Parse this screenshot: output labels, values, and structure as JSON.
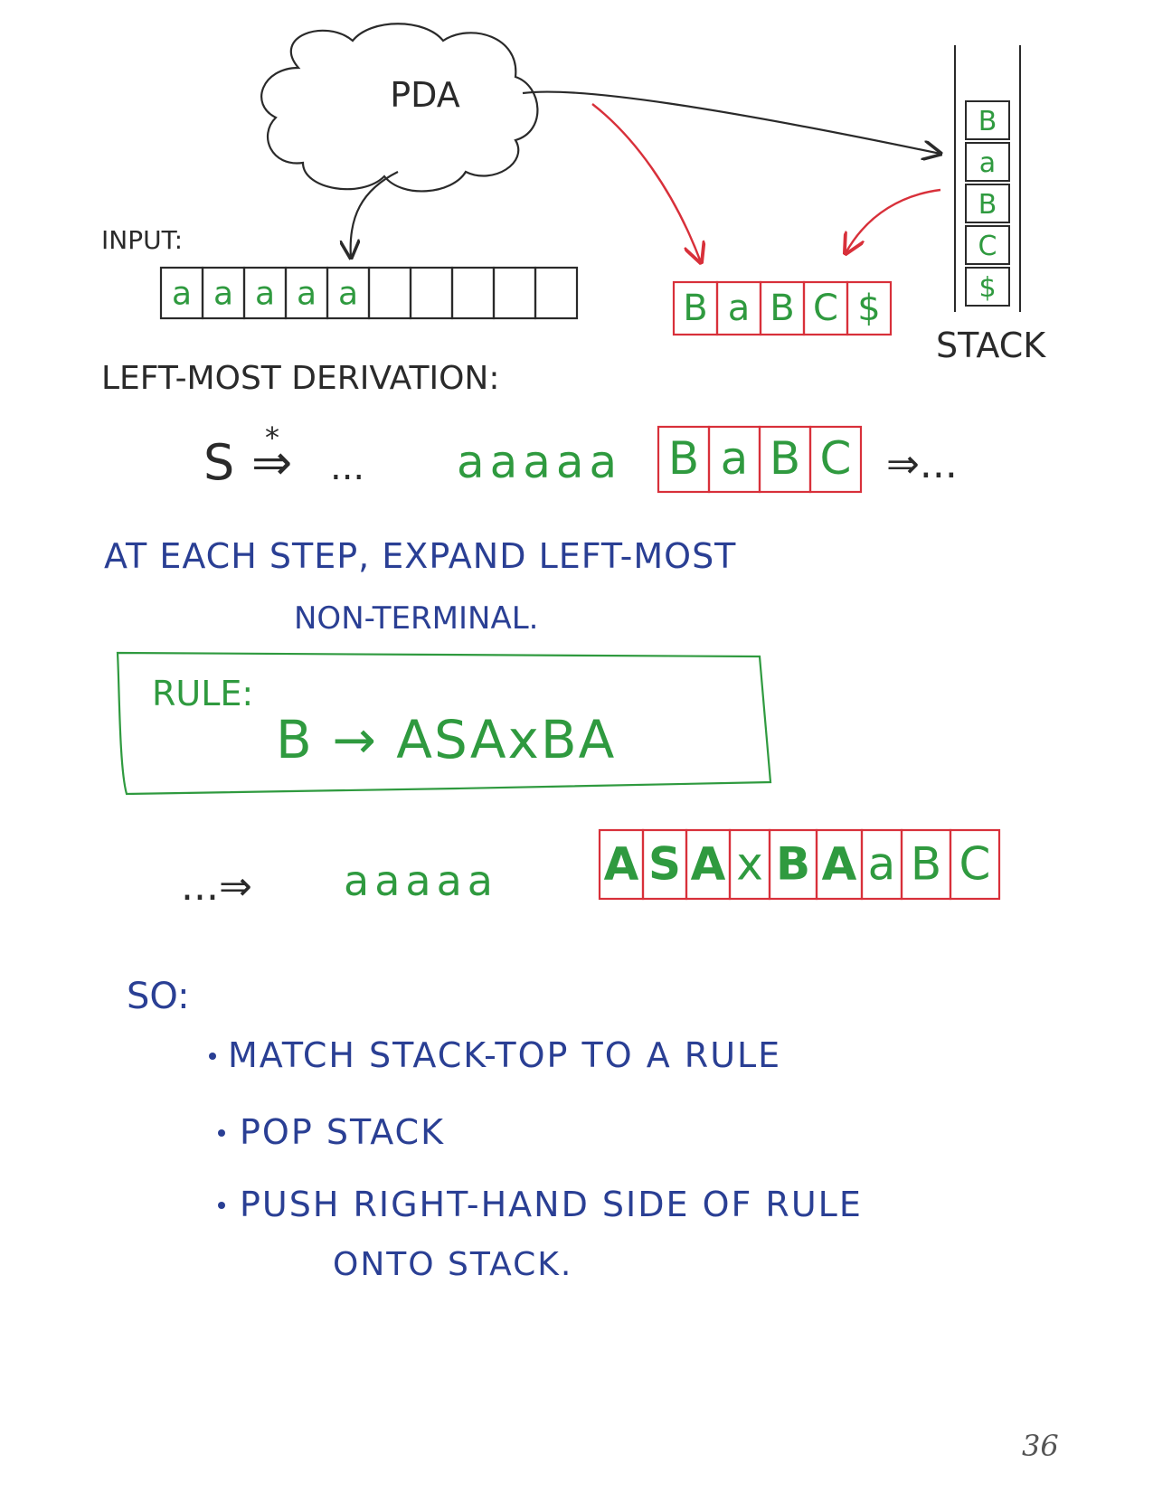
{
  "diagram": {
    "pda_label": "PDA",
    "input_label": "INPUT:",
    "input_cells": [
      "a",
      "a",
      "a",
      "a",
      "a",
      "",
      "",
      "",
      "",
      ""
    ],
    "stack_label": "STACK",
    "stack_cells": [
      "B",
      "a",
      "B",
      "C",
      "$"
    ],
    "stack_copy_cells": [
      "B",
      "a",
      "B",
      "C",
      "$"
    ],
    "derivation_heading": "LEFT-MOST DERIVATION:",
    "derivation_start": "S",
    "derivation_star": "*",
    "derivation_arrow": "⇒",
    "derivation_ellipsis": "...",
    "derivation_terminals": "aaaaa",
    "derivation_boxed": [
      "B",
      "a",
      "B",
      "C"
    ],
    "derivation_tail": "⇒...",
    "explanation_line1": "AT EACH STEP, EXPAND LEFT-MOST",
    "explanation_line2": "NON-TERMINAL.",
    "rule_label": "RULE:",
    "rule_text": "B → ASAxBA",
    "result_prefix": "...⇒",
    "result_terminals": "aaaaa",
    "result_cells": [
      "A",
      "S",
      "A",
      "x",
      "B",
      "A",
      "a",
      "B",
      "C"
    ],
    "so_label": "SO:",
    "bullets": [
      "MATCH STACK-TOP TO A RULE",
      "POP STACK",
      "PUSH RIGHT-HAND SIDE OF RULE"
    ],
    "bullet3_cont": "ONTO STACK.",
    "page_number": "36"
  },
  "colors": {
    "ink": "#2a2a2a",
    "red": "#d8303a",
    "green": "#2f9a3f",
    "blue": "#2a3f94"
  }
}
